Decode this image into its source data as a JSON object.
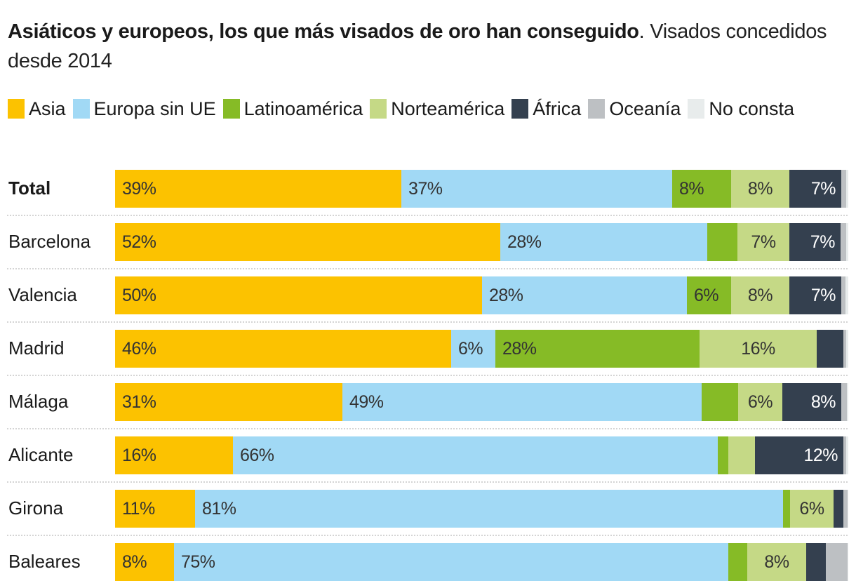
{
  "chart_data": {
    "type": "bar",
    "orientation": "horizontal",
    "stacked": "100%",
    "title": "Asiáticos y europeos, los que más visados de oro han conseguido",
    "subtitle": "Visados concedidos desde 2014",
    "legend_position": "top",
    "xlim": [
      0,
      100
    ],
    "categories": [
      "Total",
      "Barcelona",
      "Valencia",
      "Madrid",
      "Málaga",
      "Alicante",
      "Girona",
      "Baleares"
    ],
    "series": [
      {
        "name": "Asia",
        "color": "#fcc200",
        "values": [
          39,
          52,
          50,
          46,
          31,
          16,
          11,
          8
        ],
        "labels": [
          "39%",
          "52%",
          "50%",
          "46%",
          "31%",
          "16%",
          "11%",
          "8%"
        ]
      },
      {
        "name": "Europa sin UE",
        "color": "#a1d9f5",
        "values": [
          37,
          28,
          28,
          6,
          49,
          66,
          81,
          75
        ],
        "labels": [
          "37%",
          "28%",
          "28%",
          "6%",
          "49%",
          "66%",
          "81%",
          "75%"
        ]
      },
      {
        "name": "Latinoamérica",
        "color": "#86bb26",
        "values": [
          8,
          4,
          6,
          28,
          5,
          1.5,
          1,
          2.5
        ],
        "labels": [
          "8%",
          "",
          "6%",
          "28%",
          "",
          "",
          "",
          ""
        ]
      },
      {
        "name": "Norteamérica",
        "color": "#c5d986",
        "values": [
          8,
          7,
          8,
          16,
          6,
          3.6,
          6,
          8
        ],
        "labels": [
          "8%",
          "7%",
          "8%",
          "16%",
          "6%",
          "",
          "6%",
          "8%"
        ]
      },
      {
        "name": "África",
        "color": "#34404f",
        "values": [
          7,
          7,
          7,
          3.6,
          8,
          12,
          1.3,
          2.7
        ],
        "labels": [
          "7%",
          "7%",
          "7%",
          "",
          "8%",
          "12%",
          "",
          ""
        ]
      },
      {
        "name": "Oceanía",
        "color": "#bdc0c3",
        "values": [
          0.7,
          0.7,
          0.6,
          0.4,
          0.8,
          0.4,
          0.6,
          2.9
        ],
        "labels": [
          "",
          "",
          "",
          "",
          "",
          "",
          "",
          ""
        ]
      },
      {
        "name": "No consta",
        "color": "#e8ecec",
        "values": [
          0.3,
          0.3,
          0.4,
          0.3,
          0.2,
          0.3,
          0.1,
          0.1
        ],
        "labels": [
          "",
          "",
          "",
          "",
          "",
          "",
          "",
          ""
        ]
      }
    ]
  }
}
